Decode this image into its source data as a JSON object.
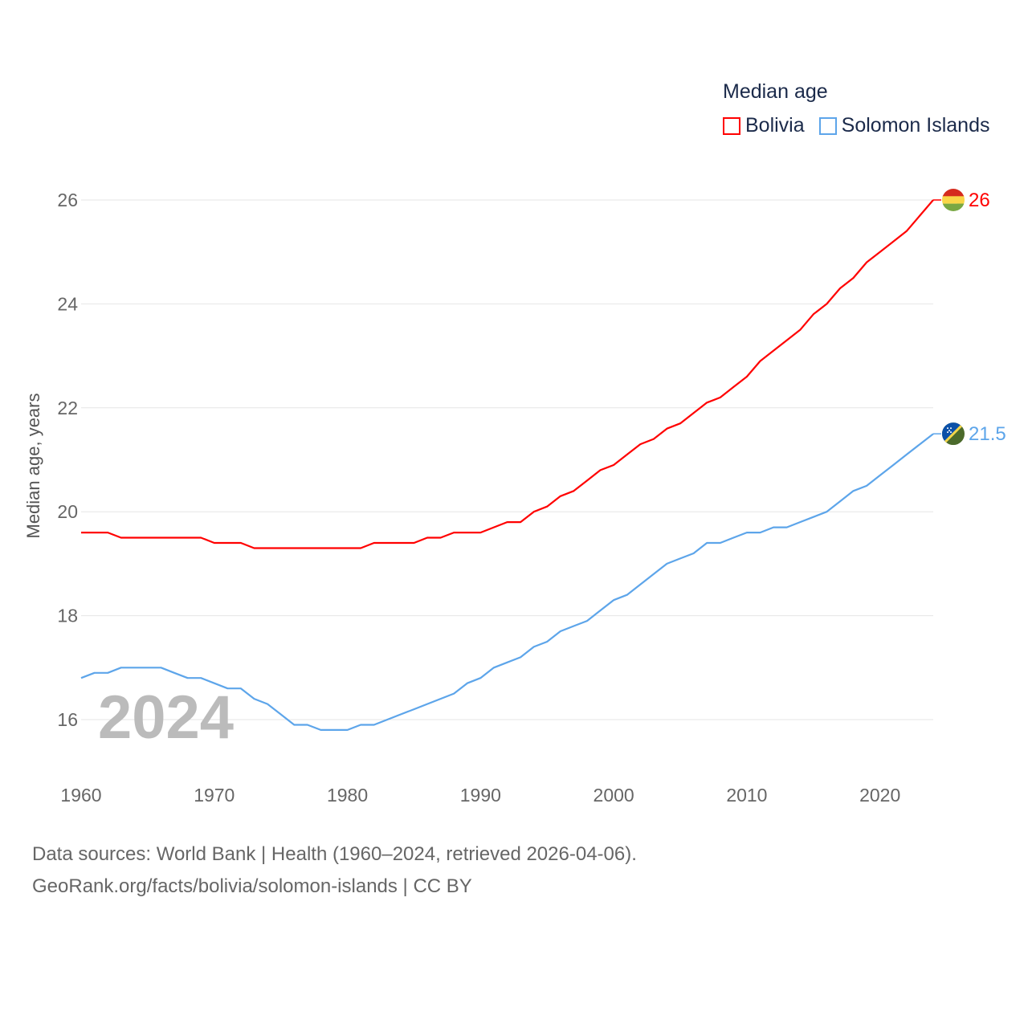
{
  "chart_data": {
    "type": "line",
    "title": "Median age",
    "xlabel": "",
    "ylabel": "Median age, years",
    "xlim": [
      1960,
      2024
    ],
    "ylim": [
      15,
      26.5
    ],
    "x_ticks": [
      1960,
      1970,
      1980,
      1990,
      2000,
      2010,
      2020
    ],
    "y_ticks": [
      16,
      18,
      20,
      22,
      24,
      26
    ],
    "grid": true,
    "legend_position": "top-right",
    "x": [
      1960,
      1961,
      1962,
      1963,
      1964,
      1965,
      1966,
      1967,
      1968,
      1969,
      1970,
      1971,
      1972,
      1973,
      1974,
      1975,
      1976,
      1977,
      1978,
      1979,
      1980,
      1981,
      1982,
      1983,
      1984,
      1985,
      1986,
      1987,
      1988,
      1989,
      1990,
      1991,
      1992,
      1993,
      1994,
      1995,
      1996,
      1997,
      1998,
      1999,
      2000,
      2001,
      2002,
      2003,
      2004,
      2005,
      2006,
      2007,
      2008,
      2009,
      2010,
      2011,
      2012,
      2013,
      2014,
      2015,
      2016,
      2017,
      2018,
      2019,
      2020,
      2021,
      2022,
      2023,
      2024
    ],
    "series": [
      {
        "name": "Bolivia",
        "color": "#ff0000",
        "end_label": "26",
        "values": [
          19.6,
          19.6,
          19.6,
          19.5,
          19.5,
          19.5,
          19.5,
          19.5,
          19.5,
          19.5,
          19.4,
          19.4,
          19.4,
          19.3,
          19.3,
          19.3,
          19.3,
          19.3,
          19.3,
          19.3,
          19.3,
          19.3,
          19.4,
          19.4,
          19.4,
          19.4,
          19.5,
          19.5,
          19.6,
          19.6,
          19.6,
          19.7,
          19.8,
          19.8,
          20.0,
          20.1,
          20.3,
          20.4,
          20.6,
          20.8,
          20.9,
          21.1,
          21.3,
          21.4,
          21.6,
          21.7,
          21.9,
          22.1,
          22.2,
          22.4,
          22.6,
          22.9,
          23.1,
          23.3,
          23.5,
          23.8,
          24.0,
          24.3,
          24.5,
          24.8,
          25.0,
          25.2,
          25.4,
          25.7,
          26.0
        ]
      },
      {
        "name": "Solomon Islands",
        "color": "#5da5ea",
        "end_label": "21.5",
        "values": [
          16.8,
          16.9,
          16.9,
          17.0,
          17.0,
          17.0,
          17.0,
          16.9,
          16.8,
          16.8,
          16.7,
          16.6,
          16.6,
          16.4,
          16.3,
          16.1,
          15.9,
          15.9,
          15.8,
          15.8,
          15.8,
          15.9,
          15.9,
          16.0,
          16.1,
          16.2,
          16.3,
          16.4,
          16.5,
          16.7,
          16.8,
          17.0,
          17.1,
          17.2,
          17.4,
          17.5,
          17.7,
          17.8,
          17.9,
          18.1,
          18.3,
          18.4,
          18.6,
          18.8,
          19.0,
          19.1,
          19.2,
          19.4,
          19.4,
          19.5,
          19.6,
          19.6,
          19.7,
          19.7,
          19.8,
          19.9,
          20.0,
          20.2,
          20.4,
          20.5,
          20.7,
          20.9,
          21.1,
          21.3,
          21.5
        ]
      }
    ],
    "watermark_year": "2024"
  },
  "source": {
    "line1": "Data sources: World Bank | Health (1960–2024, retrieved 2026-04-06).",
    "line2": "GeoRank.org/facts/bolivia/solomon-islands | CC BY"
  }
}
